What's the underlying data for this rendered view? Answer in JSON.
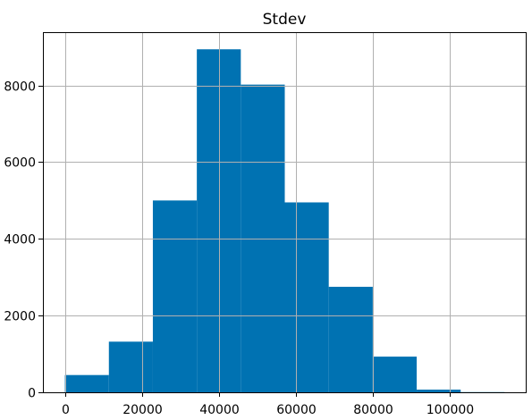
{
  "chart_data": {
    "type": "bar",
    "title": "Stdev",
    "xlabel": "",
    "ylabel": "",
    "bins": [
      {
        "x0": 0,
        "x1": 11420,
        "count": 450
      },
      {
        "x0": 11420,
        "x1": 22840,
        "count": 1320
      },
      {
        "x0": 22840,
        "x1": 34260,
        "count": 5000
      },
      {
        "x0": 34260,
        "x1": 45680,
        "count": 8940
      },
      {
        "x0": 45680,
        "x1": 57100,
        "count": 8020
      },
      {
        "x0": 57100,
        "x1": 68520,
        "count": 4950
      },
      {
        "x0": 68520,
        "x1": 79940,
        "count": 2750
      },
      {
        "x0": 79940,
        "x1": 91360,
        "count": 930
      },
      {
        "x0": 91360,
        "x1": 102780,
        "count": 70
      },
      {
        "x0": 102780,
        "x1": 114200,
        "count": 5
      }
    ],
    "xlim": [
      -5710,
      119910
    ],
    "ylim": [
      0,
      9387
    ],
    "xticks": [
      0,
      20000,
      40000,
      60000,
      80000,
      100000
    ],
    "xtick_labels": [
      "0",
      "20000",
      "40000",
      "60000",
      "80000",
      "100000"
    ],
    "yticks": [
      0,
      2000,
      4000,
      6000,
      8000
    ],
    "ytick_labels": [
      "0",
      "2000",
      "4000",
      "6000",
      "8000"
    ],
    "grid": true,
    "bar_color": "#0072b2"
  }
}
